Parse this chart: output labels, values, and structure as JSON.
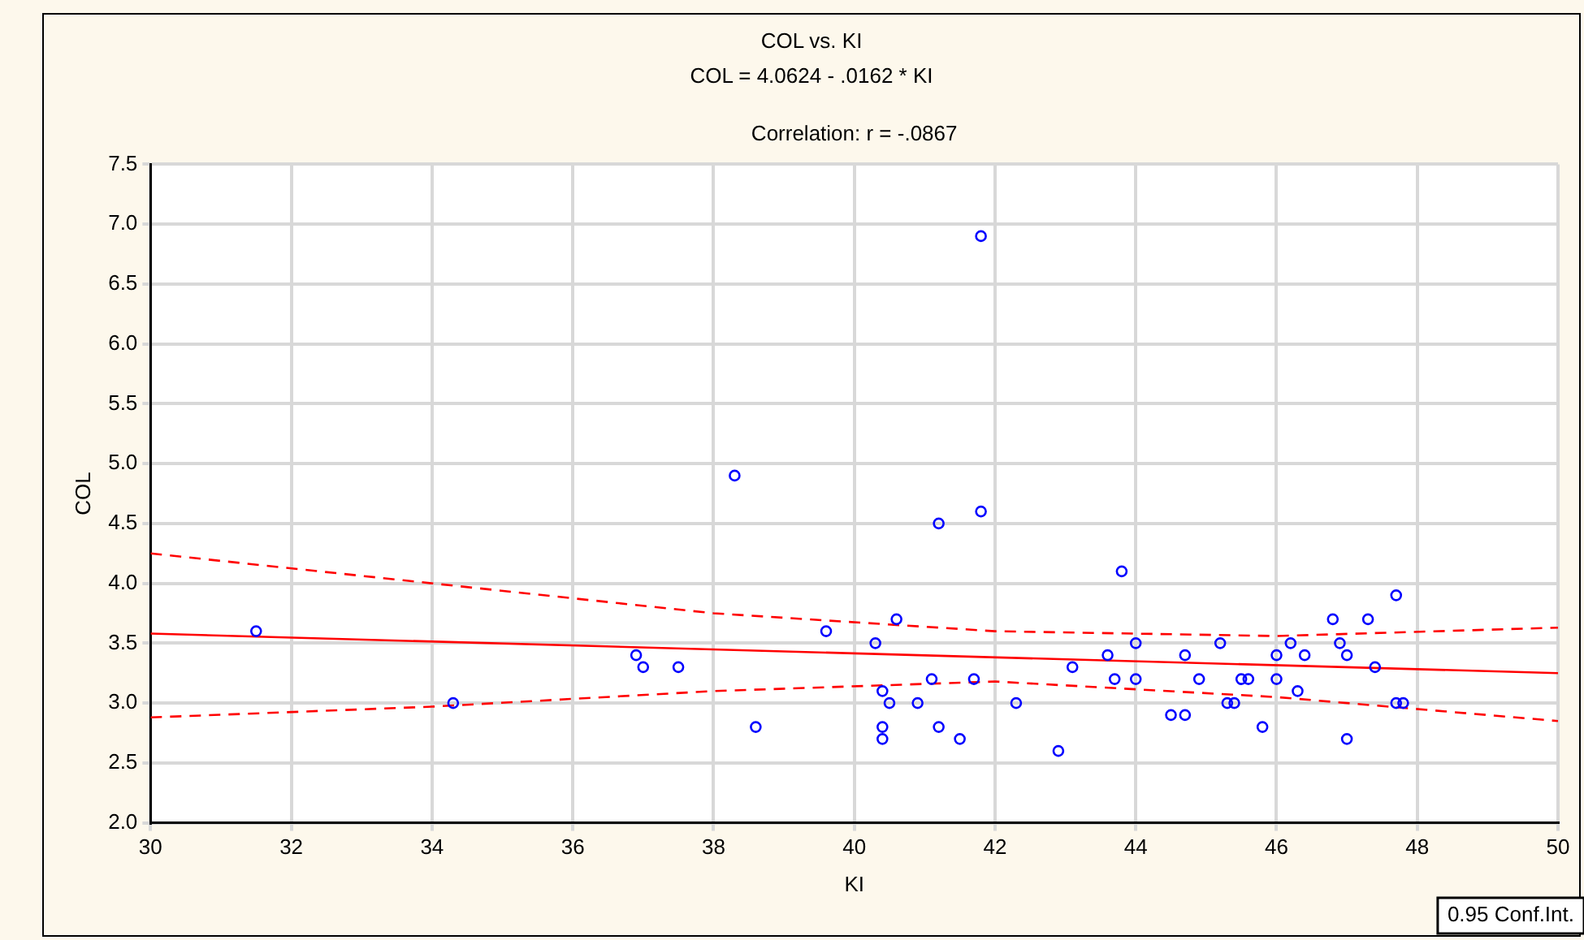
{
  "chart_data": {
    "type": "scatter",
    "title": "COL vs. KI",
    "subtitle": "COL = 4.0624 - .0162 * KI",
    "xlabel": "KI",
    "ylabel": "COL",
    "annotations": [
      "Correlation: r = -.0867",
      "0.95 Conf.Int."
    ],
    "xlim": [
      30,
      50
    ],
    "xticks": [
      30,
      32,
      34,
      36,
      38,
      40,
      42,
      44,
      46,
      48,
      50
    ],
    "ylim": [
      2,
      7.5
    ],
    "yticks": [
      {
        "value": 2,
        "label": "2.0"
      },
      2.5,
      {
        "value": 3,
        "label": "3.0"
      },
      3.5,
      {
        "value": 4,
        "label": "4.0"
      },
      4.5,
      {
        "value": 5,
        "label": "5.0"
      },
      5.5,
      {
        "value": 6,
        "label": "6.0"
      },
      6.5,
      {
        "value": 7,
        "label": "7.0"
      },
      7.5
    ],
    "grid": true,
    "series": [
      {
        "marker": "circle",
        "color": "#0000ff",
        "x": [
          31.5,
          34.3,
          36.9,
          37.0,
          37.5,
          38.3,
          38.6,
          39.6,
          40.3,
          40.4,
          40.4,
          40.4,
          40.5,
          40.6,
          40.9,
          41.1,
          41.2,
          41.2,
          41.5,
          41.7,
          41.8,
          41.8,
          42.3,
          42.9,
          43.1,
          43.6,
          43.7,
          43.8,
          44.0,
          44.0,
          44.5,
          44.7,
          44.7,
          44.9,
          45.2,
          45.3,
          45.4,
          45.5,
          45.6,
          45.8,
          46.0,
          46.0,
          46.2,
          46.3,
          46.4,
          46.8,
          46.9,
          47.0,
          47.0,
          47.3,
          47.4,
          47.7,
          47.7,
          47.8
        ],
        "values": [
          3.6,
          3.0,
          3.4,
          3.3,
          3.3,
          4.9,
          2.8,
          3.6,
          3.5,
          3.1,
          2.8,
          2.7,
          3.0,
          3.7,
          3.0,
          3.2,
          2.8,
          4.5,
          2.7,
          3.2,
          4.6,
          6.9,
          3.0,
          2.6,
          3.3,
          3.4,
          3.2,
          4.1,
          3.5,
          3.2,
          2.9,
          2.9,
          3.4,
          3.2,
          3.5,
          3.0,
          3.0,
          3.2,
          3.2,
          2.8,
          3.4,
          3.2,
          3.5,
          3.1,
          3.4,
          3.7,
          3.5,
          2.7,
          3.4,
          3.7,
          3.3,
          3.9,
          3.0,
          3.0
        ]
      },
      {
        "type": "line",
        "color": "#ff0000",
        "line_style": "solid",
        "marker": "none",
        "x": [
          30,
          50
        ],
        "values": [
          3.58,
          3.25
        ]
      },
      {
        "type": "line",
        "color": "#ff0000",
        "line_style": "dashed",
        "marker": "none",
        "x": [
          30,
          34,
          38,
          42,
          46,
          50
        ],
        "values": [
          4.25,
          4.0,
          3.75,
          3.6,
          3.56,
          3.63
        ]
      },
      {
        "type": "line",
        "color": "#ff0000",
        "line_style": "dashed",
        "marker": "none",
        "x": [
          30,
          34,
          38,
          42,
          46,
          50
        ],
        "values": [
          2.88,
          2.97,
          3.1,
          3.18,
          3.05,
          2.85
        ]
      }
    ]
  }
}
